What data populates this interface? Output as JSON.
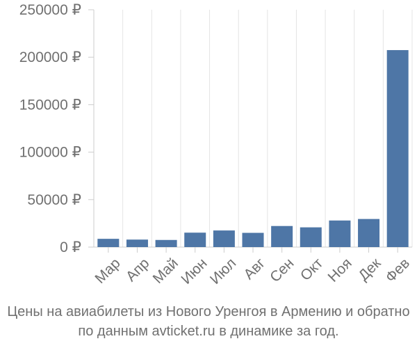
{
  "chart_data": {
    "type": "bar",
    "categories": [
      "Мар",
      "Апр",
      "Май",
      "Июн",
      "Июл",
      "Авг",
      "Сен",
      "Окт",
      "Ноя",
      "Дек",
      "Фев"
    ],
    "values": [
      8700,
      7900,
      7500,
      15200,
      17500,
      15000,
      22200,
      20800,
      28000,
      29600,
      207500
    ],
    "ylim": [
      0,
      250000
    ],
    "yticks": [
      0,
      50000,
      100000,
      150000,
      200000,
      250000
    ],
    "ytick_labels": [
      "0 ₽",
      "50000 ₽",
      "100000 ₽",
      "150000 ₽",
      "200000 ₽",
      "250000 ₽"
    ],
    "bar_color": "#4e76a6",
    "axis_color": "#cccccc",
    "grid": "vertical",
    "legend": "none"
  },
  "caption": {
    "line1": "Цены на авиабилеты из Нового Уренгоя в Армению и обратно",
    "line2": "по данным avticket.ru в динамике за год."
  }
}
